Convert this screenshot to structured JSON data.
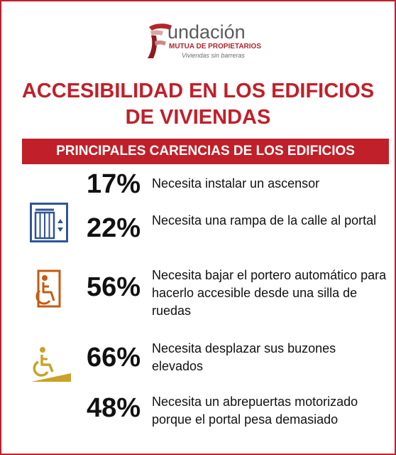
{
  "logo": {
    "wordmark": "undación",
    "subtitle": "MUTUA DE PROPIETARIOS",
    "tagline": "Viviendas sin barreras",
    "brand_color": "#c0202a"
  },
  "title": {
    "line1": "ACCESIBILIDAD EN LOS EDIFICIOS",
    "line2": "DE VIVIENDAS"
  },
  "banner": "PRINCIPALES CARENCIAS DE LOS EDIFICIOS",
  "stats": [
    {
      "percent": "17%",
      "text": "Necesita instalar un ascensor",
      "icon": "none"
    },
    {
      "percent": "22%",
      "text": "Necesita una rampa de la calle al portal",
      "icon": "elevator-icon"
    },
    {
      "percent": "56%",
      "text": "Necesita  bajar el portero automático para hacerlo accesible desde una silla de ruedas",
      "icon": "wheelchair-door-icon"
    },
    {
      "percent": "66%",
      "text": "Necesita desplazar sus buzones elevados",
      "icon": "wheelchair-ramp-icon"
    },
    {
      "percent": "48%",
      "text": "Necesita un abrepuertas motorizado porque  el portal pesa demasiado",
      "icon": "none"
    }
  ],
  "colors": {
    "accent_red": "#c0202a",
    "elevator_blue": "#2f5597",
    "icon_orange": "#c55a11",
    "ramp_gold": "#c9a227"
  }
}
